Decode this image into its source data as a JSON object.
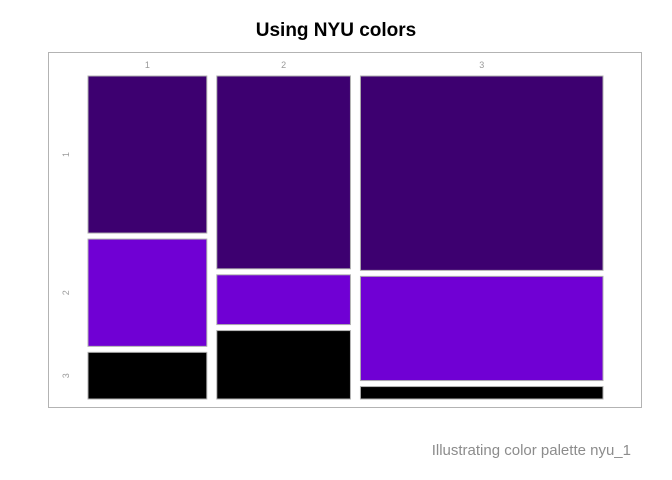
{
  "title": "Using NYU colors",
  "caption": "Illustrating color palette nyu_1",
  "chart_data": {
    "type": "mosaic",
    "title": "Using NYU colors",
    "caption": "Illustrating color palette nyu_1",
    "columns": [
      "1",
      "2",
      "3"
    ],
    "rows": [
      "1",
      "2",
      "3"
    ],
    "column_widths": [
      0.24,
      0.27,
      0.49
    ],
    "cells": [
      [
        0.505,
        0.345,
        0.15
      ],
      [
        0.62,
        0.16,
        0.22
      ],
      [
        0.625,
        0.335,
        0.04
      ]
    ],
    "row_colors": [
      "#3d0070",
      "#7000d4",
      "#000000"
    ],
    "border_color": "#b0b0b0",
    "legend": "none",
    "grid": false
  }
}
